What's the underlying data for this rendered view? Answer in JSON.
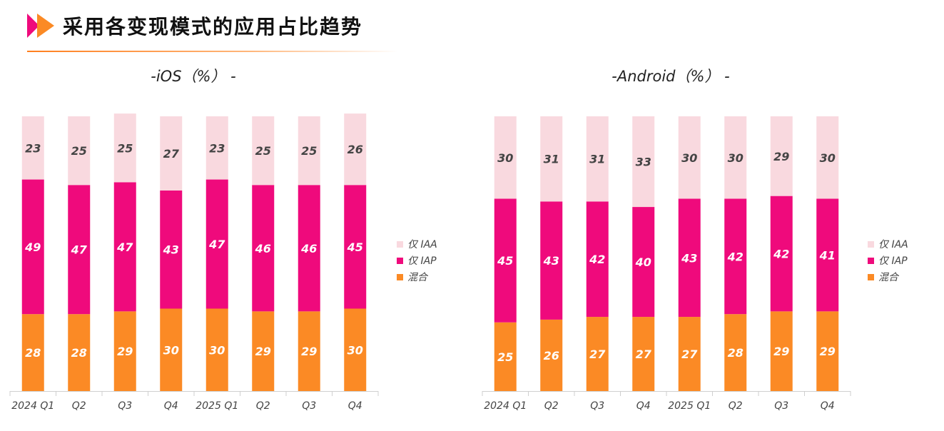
{
  "page": {
    "title": "采用各变现模式的应用占比趋势"
  },
  "colors": {
    "iaa": "#f9d9df",
    "iap": "#ef0a7c",
    "mixed": "#fb8a25",
    "logo_pink": "#ef0a7c",
    "logo_orange": "#fb8a25"
  },
  "chart_data": [
    {
      "type": "stacked-bar",
      "title": "-iOS（%） -",
      "categories": [
        "2024 Q1",
        "Q2",
        "Q3",
        "Q4",
        "2025 Q1",
        "Q2",
        "Q3",
        "Q4"
      ],
      "series": [
        {
          "name": "混合",
          "key": "mixed",
          "values": [
            28,
            28,
            29,
            30,
            30,
            29,
            29,
            30
          ]
        },
        {
          "name": "仅 IAP",
          "key": "iap",
          "values": [
            49,
            47,
            47,
            43,
            47,
            46,
            46,
            45
          ]
        },
        {
          "name": "仅 IAA",
          "key": "iaa",
          "values": [
            23,
            25,
            25,
            27,
            23,
            25,
            25,
            26
          ]
        }
      ],
      "legend": [
        "仅 IAA",
        "仅 IAP",
        "混合"
      ],
      "legend_position": "right",
      "ylim": [
        0,
        100
      ],
      "unit": "%"
    },
    {
      "type": "stacked-bar",
      "title": "-Android（%） -",
      "categories": [
        "2024 Q1",
        "Q2",
        "Q3",
        "Q4",
        "2025 Q1",
        "Q2",
        "Q3",
        "Q4"
      ],
      "series": [
        {
          "name": "混合",
          "key": "mixed",
          "values": [
            25,
            26,
            27,
            27,
            27,
            28,
            29,
            29
          ]
        },
        {
          "name": "仅 IAP",
          "key": "iap",
          "values": [
            45,
            43,
            42,
            40,
            43,
            42,
            42,
            41
          ]
        },
        {
          "name": "仅 IAA",
          "key": "iaa",
          "values": [
            30,
            31,
            31,
            33,
            30,
            30,
            29,
            30
          ]
        }
      ],
      "legend": [
        "仅 IAA",
        "仅 IAP",
        "混合"
      ],
      "legend_position": "right",
      "ylim": [
        0,
        100
      ],
      "unit": "%"
    }
  ]
}
